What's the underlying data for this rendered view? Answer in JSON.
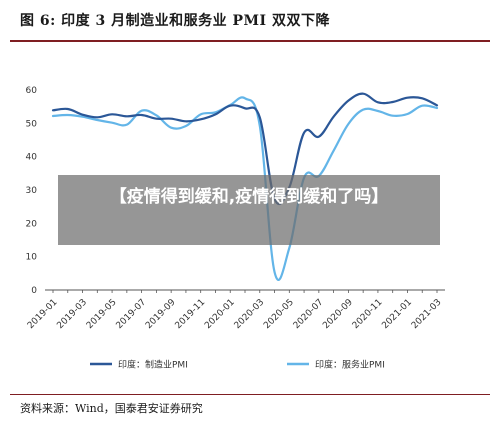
{
  "figure": {
    "title": "图 6: 印度 3 月制造业和服务业 PMI 双双下降",
    "source": "资料来源：Wind，国泰君安证券研究"
  },
  "overlay": {
    "text": "【疫情得到缓和,疫情得到缓和了吗】"
  },
  "colors": {
    "manufacturing": "#2b5797",
    "services": "#63b5e8",
    "rule": "#7f1e22"
  },
  "chart_data": {
    "type": "line",
    "title": "",
    "xlabel": "",
    "ylabel": "",
    "ylim": [
      0,
      60
    ],
    "yticks": [
      0,
      10,
      20,
      30,
      40,
      50,
      60
    ],
    "grid": false,
    "legend_position": "bottom",
    "x": [
      "2019-01",
      "2019-02",
      "2019-03",
      "2019-04",
      "2019-05",
      "2019-06",
      "2019-07",
      "2019-08",
      "2019-09",
      "2019-10",
      "2019-11",
      "2019-12",
      "2020-01",
      "2020-02",
      "2020-03",
      "2020-04",
      "2020-05",
      "2020-06",
      "2020-07",
      "2020-08",
      "2020-09",
      "2020-10",
      "2020-11",
      "2020-12",
      "2021-01",
      "2021-02",
      "2021-03"
    ],
    "xtick_labels": [
      "2019-01",
      "2019-03",
      "2019-05",
      "2019-07",
      "2019-09",
      "2019-11",
      "2020-01",
      "2020-03",
      "2020-05",
      "2020-07",
      "2020-09",
      "2020-11",
      "2021-01",
      "2021-03"
    ],
    "series": [
      {
        "name": "印度：制造业PMI",
        "color": "#2b5797",
        "values": [
          53.9,
          54.3,
          52.6,
          51.8,
          52.7,
          52.1,
          52.5,
          51.4,
          51.4,
          50.6,
          51.2,
          52.7,
          55.3,
          54.5,
          51.8,
          27.4,
          30.8,
          47.2,
          46.0,
          52.0,
          56.8,
          58.9,
          56.3,
          56.4,
          57.7,
          57.5,
          55.4
        ]
      },
      {
        "name": "印度：服务业PMI",
        "color": "#63b5e8",
        "values": [
          52.2,
          52.5,
          52.0,
          51.0,
          50.2,
          49.6,
          53.8,
          52.4,
          48.7,
          49.2,
          52.7,
          53.3,
          55.5,
          57.5,
          49.3,
          5.4,
          12.6,
          33.7,
          34.2,
          41.8,
          49.8,
          54.1,
          53.7,
          52.3,
          52.8,
          55.3,
          54.6
        ]
      }
    ]
  }
}
